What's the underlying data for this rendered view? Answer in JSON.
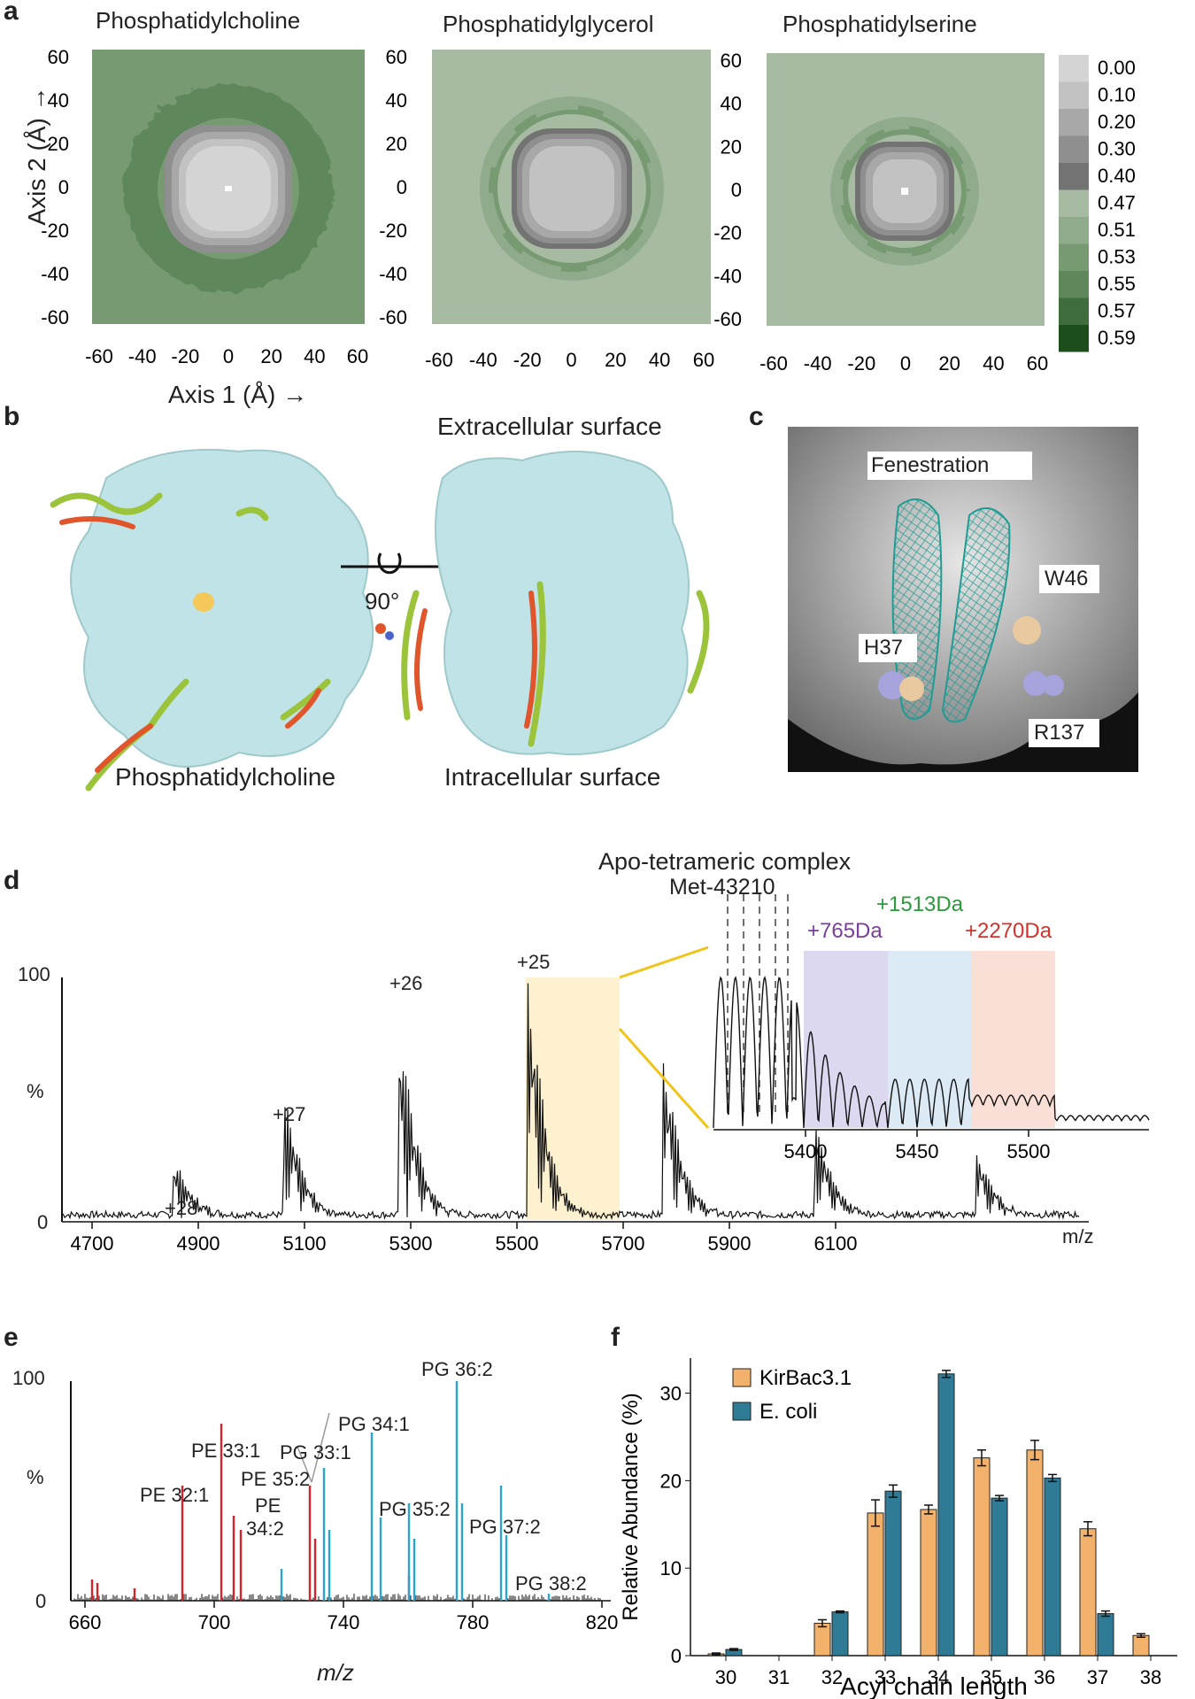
{
  "panels": {
    "a": {
      "label": "a",
      "maps": [
        {
          "title": "Phosphatidylcholine",
          "center_value": 0.0,
          "ring_value": 0.53,
          "bg_value": 0.55
        },
        {
          "title": "Phosphatidylglycerol",
          "center_value": 0.0,
          "ring_value": 0.53,
          "bg_value": 0.51
        },
        {
          "title": "Phosphatidylserine",
          "center_value": 0.0,
          "ring_value": 0.53,
          "bg_value": 0.51
        }
      ],
      "xlabel": "Axis 1 (Å) →",
      "ylabel": "Axis 2 (Å) →",
      "ticks": [
        "-60",
        "-40",
        "-20",
        "0",
        "20",
        "40",
        "60"
      ],
      "yticks": [
        "60",
        "40",
        "20",
        "0",
        "-20",
        "-40",
        "-60"
      ],
      "colorbar": {
        "labels": [
          "0.00",
          "0.10",
          "0.20",
          "0.30",
          "0.40",
          "0.47",
          "0.51",
          "0.53",
          "0.55",
          "0.57",
          "0.59"
        ],
        "colors": [
          "#d4d4d4",
          "#c2c2c2",
          "#a8a8a8",
          "#8f8f8f",
          "#737373",
          "#a7bba3",
          "#8fab8b",
          "#779a73",
          "#5f875c",
          "#3f6e3c",
          "#1d4d1b"
        ]
      }
    },
    "b": {
      "label": "b",
      "left_caption": "Phosphatidylcholine",
      "top_caption": "Extracellular surface",
      "bottom_caption": "Intracellular surface",
      "rotation": "90°"
    },
    "c": {
      "label": "c",
      "labels": {
        "fen": "Fenestration",
        "w46": "W46",
        "h37": "H37",
        "r137": "R137"
      }
    },
    "d": {
      "label": "d",
      "title1": "Apo-tetrameric complex",
      "title2": "Met-43210",
      "charges": [
        "+28",
        "+27",
        "+26",
        "+25"
      ],
      "y100": "100",
      "y0": "0",
      "ylabel": "%",
      "xticks": [
        "4700",
        "4900",
        "5100",
        "5300",
        "5500",
        "5700",
        "5900",
        "6100"
      ],
      "xunit": "m/z",
      "inset": {
        "adducts": [
          {
            "label": "+765Da",
            "color": "#7a3e9d"
          },
          {
            "label": "+1513Da",
            "color": "#2a9a3a"
          },
          {
            "label": "+2270Da",
            "color": "#d2322b"
          }
        ],
        "xticks": [
          "5400",
          "5450",
          "5500"
        ]
      }
    },
    "e": {
      "label": "e",
      "y100": "100",
      "y0": "0",
      "ylabel": "%",
      "xlabel": "m/z",
      "xticks": [
        "660",
        "700",
        "740",
        "780",
        "820"
      ],
      "peaks": [
        "PE 32:1",
        "PE 33:1",
        "PG 33:1",
        "PE 35:2",
        "PE",
        "34:2",
        "PG 34:1",
        "PG 35:2",
        "PG 36:2",
        "PG 37:2",
        "PG 38:2"
      ]
    },
    "f": {
      "label": "f",
      "chart_data": {
        "type": "bar",
        "categories": [
          "30",
          "31",
          "32",
          "33",
          "34",
          "35",
          "36",
          "37",
          "38"
        ],
        "series": [
          {
            "name": "KirBac3.1",
            "color": "#f2b26b",
            "values": [
              0.2,
              0.0,
              3.7,
              16.3,
              16.7,
              22.6,
              23.5,
              14.5,
              2.3
            ],
            "errors": [
              0.1,
              0.0,
              0.4,
              1.5,
              0.5,
              0.9,
              1.1,
              0.8,
              0.2
            ]
          },
          {
            "name": "E. coli",
            "color": "#2f7b95",
            "values": [
              0.7,
              0.0,
              5.0,
              18.8,
              32.2,
              18.0,
              20.3,
              4.8,
              0.0
            ],
            "errors": [
              0.1,
              0.0,
              0.1,
              0.7,
              0.4,
              0.3,
              0.4,
              0.3,
              0.0
            ]
          }
        ],
        "xlabel": "Acyl chain length",
        "ylabel": "Relative Abundance (%)",
        "yticks": [
          "0",
          "10",
          "20",
          "30"
        ],
        "ylim": [
          0,
          34
        ]
      }
    }
  }
}
